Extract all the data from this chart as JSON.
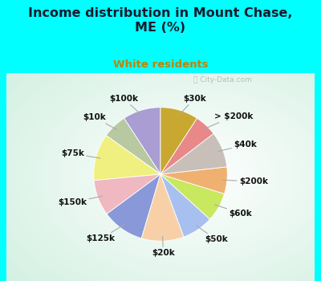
{
  "title": "Income distribution in Mount Chase,\nME (%)",
  "subtitle": "White residents",
  "title_color": "#1a1a2e",
  "subtitle_color": "#b8860b",
  "background_outer": "#00ffff",
  "background_chart": "#d4eedd",
  "watermark": "ⓘ City-Data.com",
  "labels": [
    "$100k",
    "$10k",
    "$75k",
    "$150k",
    "$125k",
    "$20k",
    "$50k",
    "$60k",
    "$200k",
    "$40k",
    "> $200k",
    "$30k"
  ],
  "values": [
    8.5,
    5.5,
    10.5,
    8.0,
    9.5,
    9.5,
    7.0,
    6.5,
    6.0,
    8.0,
    5.0,
    8.5
  ],
  "colors": [
    "#a99dd4",
    "#b8c8a0",
    "#f0f080",
    "#f0b8c0",
    "#8898d8",
    "#f8d0a8",
    "#a8c0f0",
    "#c8e860",
    "#f0b070",
    "#c8c0b8",
    "#e88888",
    "#c8a830"
  ],
  "startangle": 90,
  "figsize": [
    4.0,
    3.5
  ],
  "dpi": 100,
  "title_fontsize": 11.5,
  "subtitle_fontsize": 9.5,
  "label_fontsize": 7.5
}
